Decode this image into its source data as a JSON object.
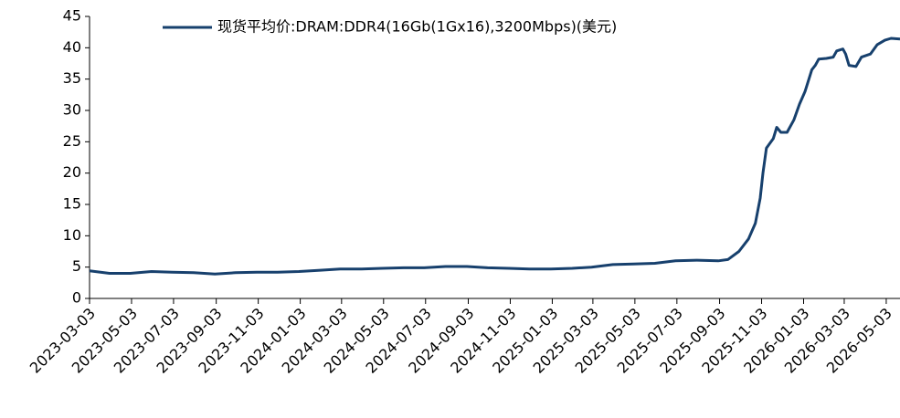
{
  "chart_data": {
    "type": "line",
    "x": [
      "2023-03-03",
      "2023-04-01",
      "2023-05-01",
      "2023-06-01",
      "2023-07-01",
      "2023-08-01",
      "2023-09-01",
      "2023-10-01",
      "2023-11-01",
      "2023-12-01",
      "2024-01-01",
      "2024-02-01",
      "2024-03-01",
      "2024-04-01",
      "2024-05-01",
      "2024-06-01",
      "2024-07-01",
      "2024-08-01",
      "2024-09-01",
      "2024-10-01",
      "2024-11-01",
      "2024-12-01",
      "2025-01-01",
      "2025-02-01",
      "2025-03-01",
      "2025-04-01",
      "2025-05-01",
      "2025-06-01",
      "2025-07-01",
      "2025-08-01",
      "2025-09-01",
      "2025-09-15",
      "2025-10-01",
      "2025-10-15",
      "2025-10-25",
      "2025-11-01",
      "2025-11-05",
      "2025-11-10",
      "2025-11-20",
      "2025-11-25",
      "2025-12-01",
      "2025-12-10",
      "2025-12-20",
      "2025-12-28",
      "2026-01-05",
      "2026-01-15",
      "2026-01-20",
      "2026-01-25",
      "2026-02-05",
      "2026-02-15",
      "2026-02-20",
      "2026-03-01",
      "2026-03-05",
      "2026-03-10",
      "2026-03-20",
      "2026-03-28",
      "2026-04-10",
      "2026-04-20",
      "2026-05-01",
      "2026-05-10",
      "2026-05-23"
    ],
    "series": [
      {
        "name": "现货平均价:DRAM:DDR4(16Gb(1Gx16),3200Mbps)(美元)",
        "color": "#17406d",
        "values": [
          4.4,
          4.0,
          4.0,
          4.3,
          4.2,
          4.1,
          3.9,
          4.1,
          4.2,
          4.2,
          4.3,
          4.5,
          4.7,
          4.7,
          4.8,
          4.9,
          4.9,
          5.1,
          5.1,
          4.9,
          4.8,
          4.7,
          4.7,
          4.8,
          5.0,
          5.4,
          5.5,
          5.6,
          6.0,
          6.1,
          6.0,
          6.2,
          7.5,
          9.5,
          12,
          16,
          20,
          24,
          25.5,
          27.3,
          26.5,
          26.5,
          28.5,
          31,
          33,
          36.5,
          37.2,
          38.2,
          38.3,
          38.5,
          39.5,
          39.8,
          39.0,
          37.2,
          37.0,
          38.5,
          39.0,
          40.5,
          41.2,
          41.5,
          41.4
        ]
      }
    ],
    "xlim": [
      "2023-03-03",
      "2026-05-23"
    ],
    "xticks": [
      "2023-03-03",
      "2023-05-03",
      "2023-07-03",
      "2023-09-03",
      "2023-11-03",
      "2024-01-03",
      "2024-03-03",
      "2024-05-03",
      "2024-07-03",
      "2024-09-03",
      "2024-11-03",
      "2025-01-03",
      "2025-03-03",
      "2025-05-03",
      "2025-07-03",
      "2025-09-03",
      "2025-11-03",
      "2026-01-03",
      "2026-03-03",
      "2026-05-03"
    ],
    "ylim": [
      0,
      45
    ],
    "yticks": [
      0,
      5,
      10,
      15,
      20,
      25,
      30,
      35,
      40,
      45
    ],
    "legend": "top"
  }
}
